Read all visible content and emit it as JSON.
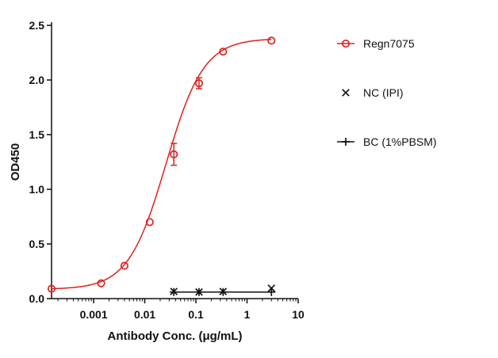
{
  "chart_data": {
    "type": "scatter",
    "xlabel": "Antibody Conc. (μg/mL)",
    "ylabel": "OD450",
    "x_scale": "log",
    "xlim": [
      0.00015,
      10
    ],
    "ylim": [
      0,
      2.5
    ],
    "x_ticks": [
      0.001,
      0.01,
      0.1,
      1,
      10
    ],
    "x_tick_labels": [
      "0.001",
      "0.01",
      "0.1",
      "1",
      "10"
    ],
    "y_ticks": [
      0,
      0.5,
      1.0,
      1.5,
      2.0,
      2.5
    ],
    "y_tick_labels": [
      "0.0",
      "0.5",
      "1.0",
      "1.5",
      "2.0",
      "2.5"
    ],
    "legend_position": "right",
    "series": [
      {
        "name": "Regn7075",
        "color": "#e0201b",
        "marker": "open-circle",
        "fit_curve": true,
        "points": [
          {
            "x": 0.00015,
            "y": 0.09
          },
          {
            "x": 0.0014,
            "y": 0.14
          },
          {
            "x": 0.004,
            "y": 0.3
          },
          {
            "x": 0.0125,
            "y": 0.7
          },
          {
            "x": 0.037,
            "y": 1.32,
            "err": 0.1
          },
          {
            "x": 0.115,
            "y": 1.97,
            "err": 0.05
          },
          {
            "x": 0.34,
            "y": 2.26
          },
          {
            "x": 3.0,
            "y": 2.36
          }
        ]
      },
      {
        "name": "NC (IPI)",
        "color": "#111111",
        "marker": "x",
        "fit_curve": false,
        "points": [
          {
            "x": 0.037,
            "y": 0.065
          },
          {
            "x": 0.115,
            "y": 0.06
          },
          {
            "x": 0.34,
            "y": 0.065
          },
          {
            "x": 3.0,
            "y": 0.095
          }
        ]
      },
      {
        "name": "BC (1%PBSM)",
        "color": "#111111",
        "marker": "plus",
        "fit_curve": true,
        "points": [
          {
            "x": 0.037,
            "y": 0.06
          },
          {
            "x": 0.115,
            "y": 0.06
          },
          {
            "x": 0.34,
            "y": 0.06
          },
          {
            "x": 3.0,
            "y": 0.06
          }
        ]
      }
    ]
  }
}
